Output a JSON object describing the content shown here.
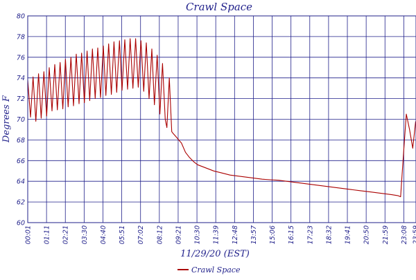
{
  "chart_data": {
    "type": "line",
    "title": "Crawl Space",
    "xlabel": "11/29/20 (EST)",
    "ylabel": "Degrees F",
    "ylim": [
      60,
      80
    ],
    "yticks": [
      "60",
      "62",
      "64",
      "66",
      "68",
      "70",
      "72",
      "74",
      "76",
      "78",
      "80"
    ],
    "xticks": [
      "00:01",
      "01:11",
      "02:21",
      "03:30",
      "04:40",
      "05:51",
      "07:02",
      "08:12",
      "09:21",
      "10:30",
      "11:39",
      "12:48",
      "13:57",
      "15:06",
      "16:15",
      "17:23",
      "18:32",
      "19:41",
      "20:50",
      "21:59",
      "23:08",
      "23:59"
    ],
    "grid": true,
    "legend_position": "bottom-center",
    "series": [
      {
        "name": "Crawl Space",
        "color": "#aa0000",
        "x_hours": [
          0.0,
          0.17,
          0.33,
          0.5,
          0.67,
          0.83,
          1.0,
          1.17,
          1.33,
          1.5,
          1.67,
          1.83,
          2.0,
          2.17,
          2.33,
          2.5,
          2.67,
          2.83,
          3.0,
          3.17,
          3.33,
          3.5,
          3.67,
          3.83,
          4.0,
          4.17,
          4.33,
          4.5,
          4.67,
          4.83,
          5.0,
          5.17,
          5.33,
          5.5,
          5.67,
          5.83,
          6.0,
          6.17,
          6.33,
          6.5,
          6.67,
          6.83,
          7.0,
          7.17,
          7.33,
          7.5,
          7.67,
          7.83,
          8.0,
          8.17,
          8.33,
          8.5,
          8.6,
          8.75,
          8.9,
          9.0,
          9.17,
          9.33,
          9.5,
          9.75,
          10.0,
          10.25,
          10.5,
          11.0,
          11.5,
          12.0,
          12.5,
          13.0,
          13.5,
          14.0,
          14.5,
          15.0,
          15.5,
          16.0,
          16.5,
          17.0,
          17.5,
          18.0,
          18.5,
          19.0,
          19.5,
          20.0,
          20.5,
          21.0,
          21.5,
          22.0,
          22.5,
          22.9,
          23.05,
          23.2,
          23.4,
          23.6,
          23.8,
          23.98
        ],
        "values": [
          73.8,
          70.2,
          74.1,
          69.8,
          74.4,
          70.1,
          74.6,
          70.3,
          75.0,
          70.8,
          75.3,
          70.9,
          75.5,
          71.0,
          75.8,
          71.2,
          76.0,
          71.3,
          76.3,
          71.5,
          76.4,
          71.6,
          76.6,
          71.8,
          76.8,
          72.0,
          76.9,
          72.1,
          77.1,
          72.3,
          77.3,
          72.4,
          77.5,
          72.6,
          77.6,
          72.8,
          77.7,
          72.9,
          77.8,
          73.0,
          77.8,
          73.1,
          77.6,
          72.7,
          77.4,
          72.0,
          76.8,
          71.4,
          76.2,
          70.5,
          75.4,
          70.0,
          69.2,
          74.0,
          68.8,
          68.6,
          68.3,
          68.0,
          67.7,
          66.8,
          66.3,
          65.9,
          65.6,
          65.3,
          65.0,
          64.8,
          64.6,
          64.5,
          64.4,
          64.3,
          64.2,
          64.15,
          64.1,
          64.0,
          63.9,
          63.8,
          63.7,
          63.6,
          63.5,
          63.4,
          63.3,
          63.2,
          63.1,
          63.0,
          62.9,
          62.8,
          62.7,
          62.6,
          62.5,
          66.0,
          70.5,
          69.0,
          67.2,
          69.8
        ]
      }
    ]
  }
}
